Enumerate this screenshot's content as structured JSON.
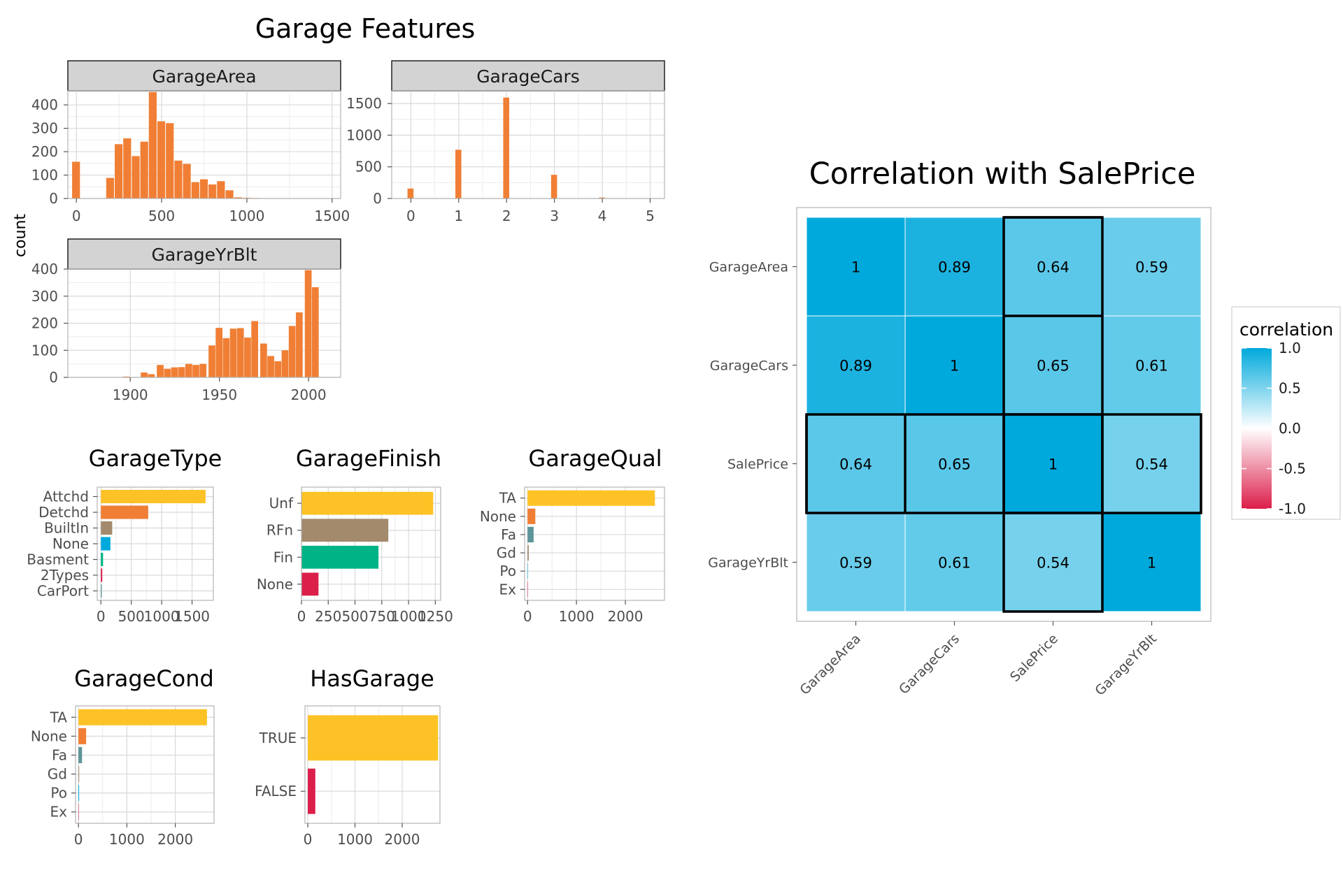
{
  "title": "Garage Features",
  "y_axis_label": "count",
  "colors": {
    "orange": "#f07f35",
    "yellow": "#fdc326",
    "brown": "#a38a6d",
    "teal": "#00b386",
    "crimson": "#dc1e4a",
    "blue": "#00a9dc",
    "slate": "#5c9499",
    "strip_fill": "#d3d3d3",
    "grid": "#d9d9d9"
  },
  "chart_data": [
    {
      "type": "bar",
      "title": "GarageArea",
      "xlim": [
        -50,
        1550
      ],
      "ylim": [
        0,
        460
      ],
      "xticks": [
        0,
        500,
        1000,
        1500
      ],
      "yticks": [
        0,
        100,
        200,
        300,
        400
      ],
      "bin_width": 50,
      "bins": [
        {
          "x": 0,
          "count": 157
        },
        {
          "x": 200,
          "count": 88
        },
        {
          "x": 250,
          "count": 232
        },
        {
          "x": 300,
          "count": 257
        },
        {
          "x": 350,
          "count": 181
        },
        {
          "x": 400,
          "count": 243
        },
        {
          "x": 450,
          "count": 455
        },
        {
          "x": 500,
          "count": 330
        },
        {
          "x": 550,
          "count": 322
        },
        {
          "x": 600,
          "count": 162
        },
        {
          "x": 650,
          "count": 148
        },
        {
          "x": 700,
          "count": 70
        },
        {
          "x": 750,
          "count": 82
        },
        {
          "x": 800,
          "count": 60
        },
        {
          "x": 850,
          "count": 74
        },
        {
          "x": 900,
          "count": 35
        },
        {
          "x": 950,
          "count": 5
        },
        {
          "x": 1000,
          "count": 3
        },
        {
          "x": 1050,
          "count": 2
        },
        {
          "x": 1100,
          "count": 0
        },
        {
          "x": 1350,
          "count": 1
        },
        {
          "x": 1400,
          "count": 1
        }
      ]
    },
    {
      "type": "bar",
      "title": "GarageCars",
      "xlim": [
        -0.4,
        5.3
      ],
      "ylim": [
        0,
        1700
      ],
      "xticks": [
        0,
        1,
        2,
        3,
        4,
        5
      ],
      "yticks": [
        0,
        500,
        1000,
        1500
      ],
      "bin_width": 0.14,
      "bins": [
        {
          "x": 0,
          "count": 157
        },
        {
          "x": 1,
          "count": 770
        },
        {
          "x": 2,
          "count": 1594
        },
        {
          "x": 3,
          "count": 374
        },
        {
          "x": 4,
          "count": 16
        },
        {
          "x": 5,
          "count": 1
        }
      ]
    },
    {
      "type": "bar",
      "title": "GarageYrBlt",
      "xlim": [
        1865,
        2018
      ],
      "ylim": [
        0,
        400
      ],
      "xticks": [
        1900,
        1950,
        2000
      ],
      "yticks": [
        0,
        100,
        200,
        300,
        400
      ],
      "bin_width": 4.2,
      "bins": [
        {
          "x": 1872,
          "count": 1
        },
        {
          "x": 1898,
          "count": 3
        },
        {
          "x": 1908,
          "count": 18
        },
        {
          "x": 1912,
          "count": 12
        },
        {
          "x": 1917,
          "count": 46
        },
        {
          "x": 1921,
          "count": 32
        },
        {
          "x": 1925,
          "count": 37
        },
        {
          "x": 1929,
          "count": 38
        },
        {
          "x": 1933,
          "count": 50
        },
        {
          "x": 1937,
          "count": 46
        },
        {
          "x": 1941,
          "count": 50
        },
        {
          "x": 1946,
          "count": 118
        },
        {
          "x": 1950,
          "count": 183
        },
        {
          "x": 1954,
          "count": 145
        },
        {
          "x": 1958,
          "count": 180
        },
        {
          "x": 1962,
          "count": 182
        },
        {
          "x": 1966,
          "count": 147
        },
        {
          "x": 1970,
          "count": 208
        },
        {
          "x": 1975,
          "count": 125
        },
        {
          "x": 1979,
          "count": 79
        },
        {
          "x": 1983,
          "count": 60
        },
        {
          "x": 1987,
          "count": 100
        },
        {
          "x": 1991,
          "count": 190
        },
        {
          "x": 1995,
          "count": 240
        },
        {
          "x": 2000,
          "count": 396
        },
        {
          "x": 2004,
          "count": 333
        }
      ]
    },
    {
      "type": "bar",
      "orientation": "horizontal",
      "title": "GarageType",
      "xlim": [
        -60,
        1850
      ],
      "xticks": [
        0,
        500,
        1000,
        1500
      ],
      "xtick_labels": [
        "0",
        "500",
        "1000",
        "1500"
      ],
      "categories": [
        "Attchd",
        "Detchd",
        "BuiltIn",
        "None",
        "Basment",
        "2Types",
        "CarPort"
      ],
      "values": [
        1723,
        779,
        186,
        157,
        36,
        23,
        15
      ],
      "colors": [
        "#fdc326",
        "#f07f35",
        "#a38a6d",
        "#00a9dc",
        "#00b386",
        "#dc1e4a",
        "#5c9499"
      ]
    },
    {
      "type": "bar",
      "orientation": "horizontal",
      "title": "GarageFinish",
      "xlim": [
        0,
        1300
      ],
      "xticks": [
        0,
        250,
        500,
        750,
        1000,
        1250
      ],
      "xtick_labels": [
        "0",
        "250",
        "500",
        "750",
        "1000",
        "1250"
      ],
      "categories": [
        "Unf",
        "RFn",
        "Fin",
        "None"
      ],
      "values": [
        1230,
        811,
        719,
        159
      ],
      "colors": [
        "#fdc326",
        "#a38a6d",
        "#00b386",
        "#dc1e4a"
      ]
    },
    {
      "type": "bar",
      "orientation": "horizontal",
      "title": "GarageQual",
      "xlim": [
        -60,
        2800
      ],
      "xticks": [
        0,
        1000,
        2000
      ],
      "xtick_labels": [
        "0",
        "1000",
        "2000"
      ],
      "categories": [
        "TA",
        "None",
        "Fa",
        "Gd",
        "Po",
        "Ex"
      ],
      "values": [
        2604,
        159,
        124,
        24,
        5,
        3
      ],
      "colors": [
        "#fdc326",
        "#f07f35",
        "#5c9499",
        "#a38a6d",
        "#00a9dc",
        "#dc1e4a"
      ]
    },
    {
      "type": "bar",
      "orientation": "horizontal",
      "title": "GarageCond",
      "xlim": [
        -60,
        2800
      ],
      "xticks": [
        0,
        1000,
        2000
      ],
      "xtick_labels": [
        "0",
        "1000",
        "2000"
      ],
      "categories": [
        "TA",
        "None",
        "Fa",
        "Gd",
        "Po",
        "Ex"
      ],
      "values": [
        2654,
        159,
        74,
        15,
        14,
        3
      ],
      "colors": [
        "#fdc326",
        "#f07f35",
        "#5c9499",
        "#a38a6d",
        "#00a9dc",
        "#dc1e4a"
      ]
    },
    {
      "type": "bar",
      "orientation": "horizontal",
      "title": "HasGarage",
      "xlim": [
        -60,
        2800
      ],
      "xticks": [
        0,
        1000,
        2000
      ],
      "xtick_labels": [
        "0",
        "1000",
        "2000"
      ],
      "categories": [
        "TRUE",
        "FALSE"
      ],
      "values": [
        2760,
        159
      ],
      "colors": [
        "#fdc326",
        "#dc1e4a"
      ]
    },
    {
      "type": "heatmap",
      "title": "Correlation with SalePrice",
      "x_labels": [
        "GarageArea",
        "GarageCars",
        "SalePrice",
        "GarageYrBlt"
      ],
      "y_labels": [
        "GarageArea",
        "GarageCars",
        "SalePrice",
        "GarageYrBlt"
      ],
      "matrix": [
        [
          1,
          0.89,
          0.64,
          0.59
        ],
        [
          0.89,
          1,
          0.65,
          0.61
        ],
        [
          0.64,
          0.65,
          1,
          0.54
        ],
        [
          0.59,
          0.61,
          0.54,
          1
        ]
      ],
      "highlight": "SalePrice",
      "legend": {
        "title": "correlation",
        "ticks": [
          1.0,
          0.5,
          0.0,
          -0.5,
          -1.0
        ],
        "tick_labels": [
          "1.0",
          "0.5",
          "0.0",
          "-0.5",
          "-1.0"
        ],
        "colors": [
          "#00a9dc",
          "#ffffff",
          "#dc1e4a"
        ]
      }
    }
  ]
}
